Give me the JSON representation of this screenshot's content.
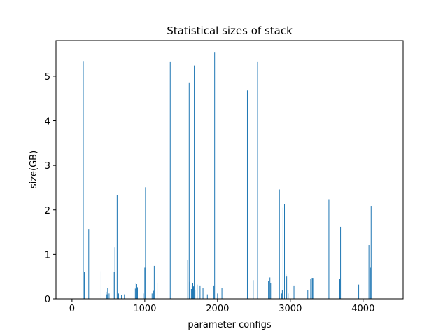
{
  "chart_data": {
    "type": "bar",
    "title": "Statistical sizes of stack",
    "xlabel": "parameter configs",
    "ylabel": "size(GB)",
    "xlim": [
      -220,
      4550
    ],
    "ylim": [
      0,
      5.8
    ],
    "xticks": [
      0,
      1000,
      2000,
      3000,
      4000
    ],
    "yticks": [
      0,
      1,
      2,
      3,
      4,
      5
    ],
    "grid": false,
    "bar_color": "#1f77b4",
    "series": [
      {
        "x": [
          155,
          170,
          230,
          400,
          470,
          480,
          490,
          510,
          580,
          590,
          620,
          630,
          640,
          680,
          720,
          870,
          880,
          890,
          900,
          980,
          1000,
          1010,
          1100,
          1120,
          1130,
          1170,
          1350,
          1590,
          1610,
          1620,
          1640,
          1650,
          1660,
          1670,
          1680,
          1690,
          1720,
          1760,
          1800,
          1860,
          1950,
          1960,
          2000,
          2060,
          2410,
          2490,
          2550,
          2700,
          2720,
          2730,
          2850,
          2880,
          2890,
          2900,
          2920,
          2940,
          2950,
          2970,
          3050,
          3240,
          3280,
          3300,
          3310,
          3530,
          3680,
          3690,
          3940,
          4080,
          4100,
          4110
        ],
        "values": [
          5.34,
          0.6,
          1.57,
          0.62,
          0.16,
          0.1,
          0.25,
          0.12,
          0.6,
          1.16,
          2.34,
          2.33,
          0.12,
          0.08,
          0.1,
          0.23,
          0.35,
          0.33,
          0.26,
          0.12,
          0.7,
          2.51,
          0.12,
          0.18,
          0.74,
          0.35,
          5.33,
          0.88,
          4.86,
          0.38,
          0.22,
          0.28,
          0.35,
          0.28,
          5.24,
          0.2,
          0.32,
          0.3,
          0.25,
          0.1,
          0.3,
          5.53,
          0.12,
          0.24,
          4.68,
          0.42,
          5.33,
          0.4,
          0.48,
          0.35,
          2.46,
          0.12,
          0.2,
          2.05,
          2.13,
          0.55,
          0.5,
          0.12,
          0.3,
          0.2,
          0.45,
          0.47,
          0.47,
          2.24,
          0.45,
          1.62,
          0.32,
          1.21,
          0.7,
          2.09
        ]
      }
    ]
  }
}
